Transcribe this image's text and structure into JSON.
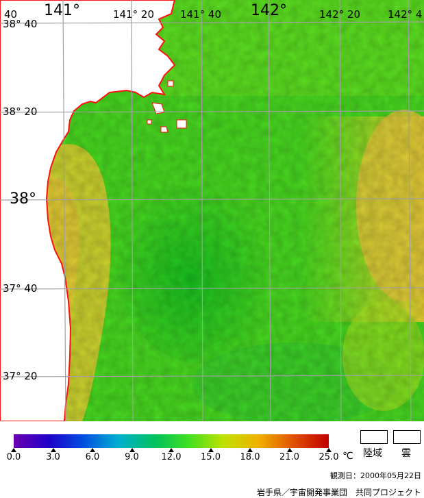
{
  "map": {
    "lon_labels": [
      "141°",
      "141° 20",
      "141° 40",
      "142°",
      "142° 20",
      "142° 4"
    ],
    "lat_labels": [
      "38° 40",
      "38° 20",
      "38°",
      "37° 40",
      "37° 20"
    ],
    "corner_label": "40",
    "land_color": "#ffffff",
    "coast_color": "#ff1010",
    "grid_color": "#a0a0a0"
  },
  "colorbar": {
    "ticks": [
      "0.0",
      "3.0",
      "6.0",
      "9.0",
      "12.0",
      "15.0",
      "18.0",
      "21.0",
      "25.0"
    ],
    "tick_values": [
      0,
      3,
      6,
      9,
      12,
      15,
      18,
      21,
      25
    ],
    "unit": "℃",
    "colors": [
      "#6a00b0",
      "#2000c8",
      "#0050e0",
      "#00b0d0",
      "#00c060",
      "#40e020",
      "#c0e000",
      "#f0b000",
      "#e05000",
      "#c00000"
    ]
  },
  "legend": {
    "land": "陸域",
    "cloud": "雲"
  },
  "observation_date": "観測日：2000年05月22日",
  "credit": "岩手県／宇宙開発事業団　共同プロジェクト"
}
